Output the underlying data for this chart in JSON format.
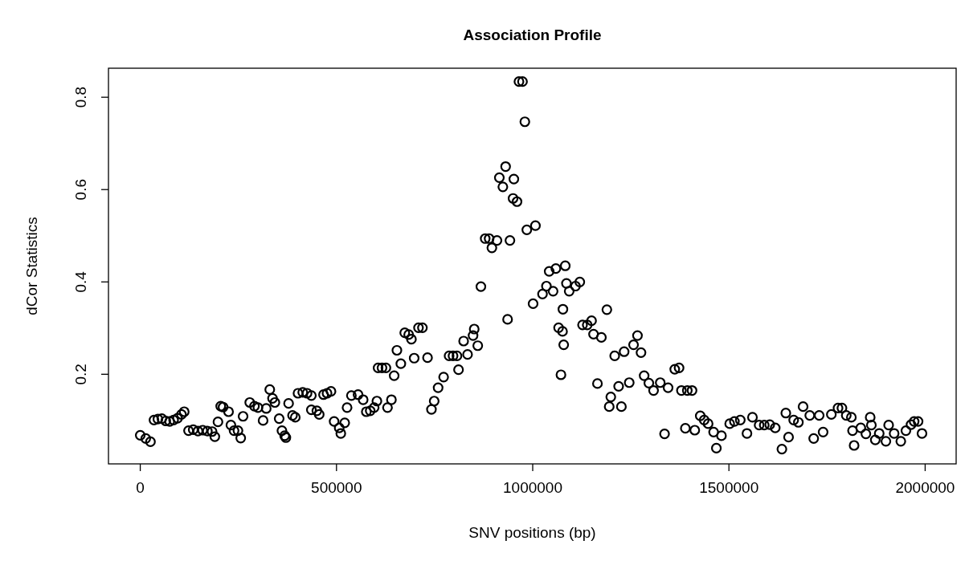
{
  "chart_data": {
    "type": "scatter",
    "title": "Association Profile",
    "xlabel": "SNV positions (bp)",
    "ylabel": "dCor Statistics",
    "color": "#000000",
    "marker": "circle",
    "xlim": [
      -80000,
      2080000
    ],
    "ylim": [
      0.005,
      0.862
    ],
    "xticks": [
      0,
      500000,
      1000000,
      1500000,
      2000000
    ],
    "yticks": [
      0.2,
      0.4,
      0.6,
      0.8
    ],
    "x": [
      1000,
      15000,
      27000,
      36000,
      46000,
      56000,
      66000,
      76000,
      86000,
      96000,
      106000,
      113000,
      124000,
      136000,
      148000,
      160000,
      172000,
      184000,
      191000,
      199000,
      206000,
      212000,
      226000,
      232000,
      240000,
      250000,
      257000,
      263000,
      280000,
      292000,
      301000,
      314000,
      322000,
      331000,
      338000,
      344000,
      355000,
      362000,
      369000,
      372000,
      379000,
      389000,
      396000,
      403000,
      415000,
      426000,
      437000,
      437000,
      451000,
      457000,
      468000,
      477000,
      487000,
      495000,
      508000,
      512000,
      522000,
      528000,
      539000,
      556000,
      569000,
      577000,
      587000,
      597000,
      604000,
      607000,
      617000,
      627000,
      631000,
      641000,
      648000,
      655000,
      665000,
      675000,
      685000,
      692000,
      699000,
      710000,
      720000,
      733000,
      743000,
      750000,
      760000,
      774000,
      788000,
      798000,
      808000,
      812000,
      825000,
      835000,
      849000,
      852000,
      861000,
      869000,
      880000,
      890000,
      897000,
      910000,
      916000,
      925000,
      932000,
      937000,
      943000,
      951000,
      953000,
      961000,
      966000,
      975000,
      981000,
      986000,
      1002000,
      1008000,
      1026000,
      1036000,
      1043000,
      1053000,
      1060000,
      1067000,
      1073000,
      1078000,
      1077000,
      1080000,
      1084000,
      1087000,
      1094000,
      1110000,
      1121000,
      1128000,
      1140000,
      1151000,
      1156000,
      1166000,
      1176000,
      1190000,
      1196000,
      1200000,
      1210000,
      1220000,
      1227000,
      1234000,
      1247000,
      1258000,
      1268000,
      1277000,
      1285000,
      1297000,
      1309000,
      1326000,
      1337000,
      1346000,
      1363000,
      1374000,
      1380000,
      1390000,
      1395000,
      1407000,
      1414000,
      1428000,
      1438000,
      1448000,
      1462000,
      1469000,
      1482000,
      1503000,
      1515000,
      1530000,
      1547000,
      1561000,
      1578000,
      1591000,
      1605000,
      1619000,
      1636000,
      1646000,
      1653000,
      1666000,
      1678000,
      1690000,
      1707000,
      1717000,
      1731000,
      1741000,
      1762000,
      1779000,
      1789000,
      1800000,
      1813000,
      1816000,
      1820000,
      1837000,
      1850000,
      1861000,
      1864000,
      1874000,
      1884000,
      1901000,
      1908000,
      1922000,
      1939000,
      1952000,
      1965000,
      1973000,
      1983000,
      1993000
    ],
    "values": [
      0.067,
      0.06,
      0.053,
      0.1,
      0.102,
      0.103,
      0.098,
      0.097,
      0.1,
      0.104,
      0.112,
      0.118,
      0.077,
      0.079,
      0.076,
      0.078,
      0.076,
      0.075,
      0.064,
      0.096,
      0.13,
      0.128,
      0.118,
      0.089,
      0.077,
      0.077,
      0.061,
      0.108,
      0.138,
      0.13,
      0.127,
      0.099,
      0.125,
      0.166,
      0.147,
      0.138,
      0.103,
      0.077,
      0.066,
      0.062,
      0.136,
      0.11,
      0.106,
      0.158,
      0.16,
      0.158,
      0.153,
      0.122,
      0.12,
      0.112,
      0.155,
      0.158,
      0.162,
      0.097,
      0.083,
      0.071,
      0.094,
      0.127,
      0.153,
      0.155,
      0.144,
      0.118,
      0.12,
      0.127,
      0.141,
      0.213,
      0.213,
      0.213,
      0.127,
      0.144,
      0.196,
      0.251,
      0.222,
      0.289,
      0.285,
      0.275,
      0.234,
      0.3,
      0.3,
      0.235,
      0.123,
      0.141,
      0.17,
      0.193,
      0.239,
      0.239,
      0.239,
      0.209,
      0.271,
      0.242,
      0.283,
      0.297,
      0.261,
      0.389,
      0.493,
      0.493,
      0.473,
      0.489,
      0.625,
      0.605,
      0.649,
      0.318,
      0.489,
      0.58,
      0.622,
      0.573,
      0.833,
      0.833,
      0.746,
      0.512,
      0.352,
      0.521,
      0.373,
      0.39,
      0.422,
      0.379,
      0.428,
      0.3,
      0.198,
      0.34,
      0.292,
      0.263,
      0.434,
      0.396,
      0.379,
      0.39,
      0.399,
      0.306,
      0.306,
      0.315,
      0.286,
      0.179,
      0.279,
      0.339,
      0.129,
      0.15,
      0.239,
      0.173,
      0.129,
      0.248,
      0.181,
      0.263,
      0.283,
      0.246,
      0.196,
      0.18,
      0.164,
      0.181,
      0.07,
      0.17,
      0.21,
      0.213,
      0.164,
      0.082,
      0.164,
      0.164,
      0.078,
      0.109,
      0.1,
      0.092,
      0.074,
      0.039,
      0.066,
      0.092,
      0.097,
      0.1,
      0.071,
      0.106,
      0.089,
      0.089,
      0.09,
      0.083,
      0.037,
      0.115,
      0.063,
      0.1,
      0.095,
      0.129,
      0.11,
      0.06,
      0.11,
      0.074,
      0.112,
      0.126,
      0.126,
      0.11,
      0.106,
      0.077,
      0.045,
      0.083,
      0.07,
      0.106,
      0.089,
      0.057,
      0.071,
      0.054,
      0.089,
      0.071,
      0.054,
      0.077,
      0.09,
      0.097,
      0.097,
      0.071
    ]
  }
}
